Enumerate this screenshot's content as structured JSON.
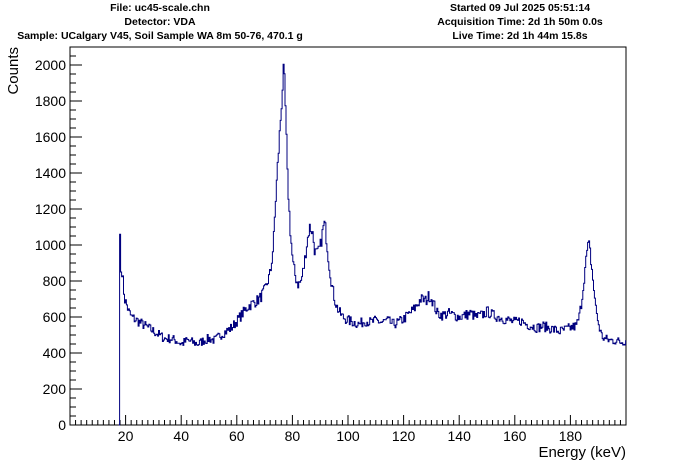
{
  "header": {
    "file": "File: uc45-scale.chn",
    "detector": "Detector: VDA",
    "sample": "Sample: UCalgary V45, Soil Sample WA 8m 50-76, 470.1 g",
    "started": "Started 09 Jul 2025 05:51:14",
    "acquisition": "Acquisition Time: 2d 1h 50m 0.0s",
    "live": "Live Time: 2d 1h 44m 15.8s"
  },
  "chart_data": {
    "type": "line",
    "title": "",
    "xlabel": "Energy (keV)",
    "ylabel": "Counts",
    "xlim": [
      0,
      200
    ],
    "ylim": [
      0,
      2100
    ],
    "x_ticks": [
      20,
      40,
      60,
      80,
      100,
      120,
      140,
      160,
      180
    ],
    "y_ticks": [
      0,
      200,
      400,
      600,
      800,
      1000,
      1200,
      1400,
      1600,
      1800,
      2000
    ],
    "grid": false,
    "legend": "none",
    "line_color": "#00007f",
    "series": [
      {
        "x": [
          17.5,
          17.8,
          18.2,
          18.6,
          19,
          19.5,
          20,
          21,
          22,
          23,
          24,
          26,
          28,
          30,
          32,
          34,
          36,
          38,
          40,
          42,
          44,
          46,
          48,
          50,
          52,
          54,
          56,
          58,
          60,
          62,
          64,
          66,
          68,
          70,
          72,
          73,
          74,
          75,
          76,
          76.6,
          77,
          77.5,
          78,
          79,
          80,
          81,
          82,
          83,
          84,
          85,
          86,
          87,
          88,
          89,
          90,
          91,
          91.5,
          92,
          93,
          94,
          95,
          96,
          97,
          98,
          99,
          100,
          102,
          104,
          106,
          108,
          110,
          112,
          114,
          116,
          118,
          120,
          122,
          124,
          126,
          128,
          129,
          130,
          131,
          132,
          134,
          136,
          138,
          140,
          142,
          144,
          146,
          148,
          150,
          152,
          154,
          156,
          158,
          160,
          162,
          164,
          166,
          168,
          170,
          172,
          174,
          176,
          178,
          180,
          182,
          183,
          184,
          185,
          186,
          186.5,
          187,
          188,
          189,
          190,
          191,
          192,
          194,
          196,
          198,
          200
        ],
        "y": [
          0,
          1090,
          850,
          860,
          780,
          700,
          680,
          630,
          600,
          590,
          580,
          560,
          540,
          520,
          500,
          480,
          480,
          470,
          450,
          470,
          460,
          450,
          470,
          480,
          470,
          500,
          520,
          540,
          580,
          620,
          660,
          680,
          700,
          750,
          850,
          1000,
          1300,
          1550,
          1800,
          1960,
          1900,
          1700,
          1400,
          1100,
          900,
          820,
          780,
          800,
          880,
          1000,
          1100,
          1080,
          960,
          950,
          1000,
          1100,
          1120,
          1050,
          900,
          780,
          700,
          650,
          620,
          600,
          590,
          580,
          570,
          560,
          580,
          570,
          580,
          570,
          580,
          560,
          570,
          590,
          620,
          650,
          700,
          690,
          720,
          700,
          660,
          620,
          610,
          620,
          610,
          600,
          610,
          620,
          600,
          610,
          630,
          610,
          600,
          590,
          580,
          570,
          580,
          560,
          550,
          540,
          550,
          540,
          530,
          520,
          530,
          540,
          550,
          600,
          700,
          850,
          980,
          1000,
          950,
          800,
          650,
          560,
          500,
          480,
          470,
          470,
          460,
          470
        ]
      }
    ]
  }
}
